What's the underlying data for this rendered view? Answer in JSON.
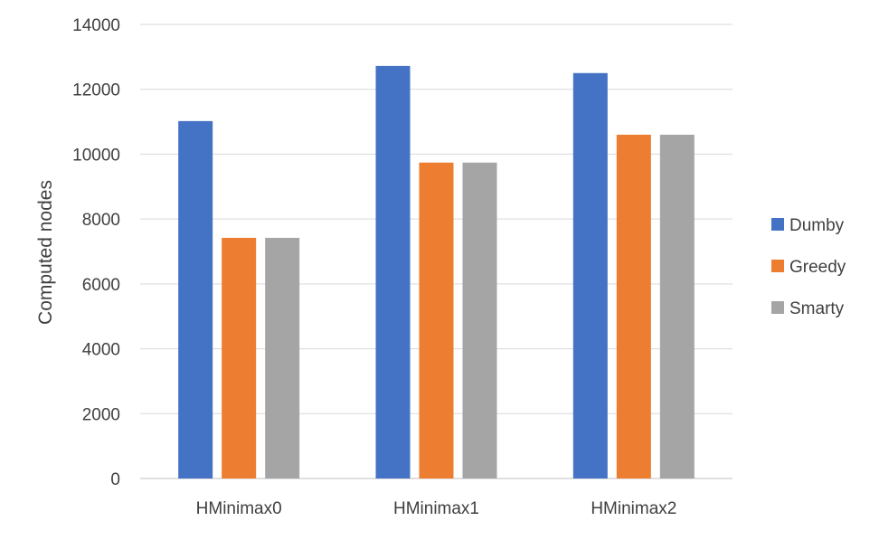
{
  "chart_data": {
    "type": "bar",
    "title": "",
    "xlabel": "",
    "ylabel": "Computed nodes",
    "ylim": [
      0,
      14000
    ],
    "yticks": [
      0,
      2000,
      4000,
      6000,
      8000,
      10000,
      12000,
      14000
    ],
    "grid": true,
    "legend_position": "right",
    "categories": [
      "HMinimax0",
      "HMinimax1",
      "HMinimax2"
    ],
    "series": [
      {
        "name": "Dumby",
        "color": "#4472C4",
        "values": [
          11020,
          12720,
          12500
        ]
      },
      {
        "name": "Greedy",
        "color": "#ED7D31",
        "values": [
          7420,
          9740,
          10600
        ]
      },
      {
        "name": "Smarty",
        "color": "#A5A5A5",
        "values": [
          7420,
          9740,
          10600
        ]
      }
    ]
  }
}
